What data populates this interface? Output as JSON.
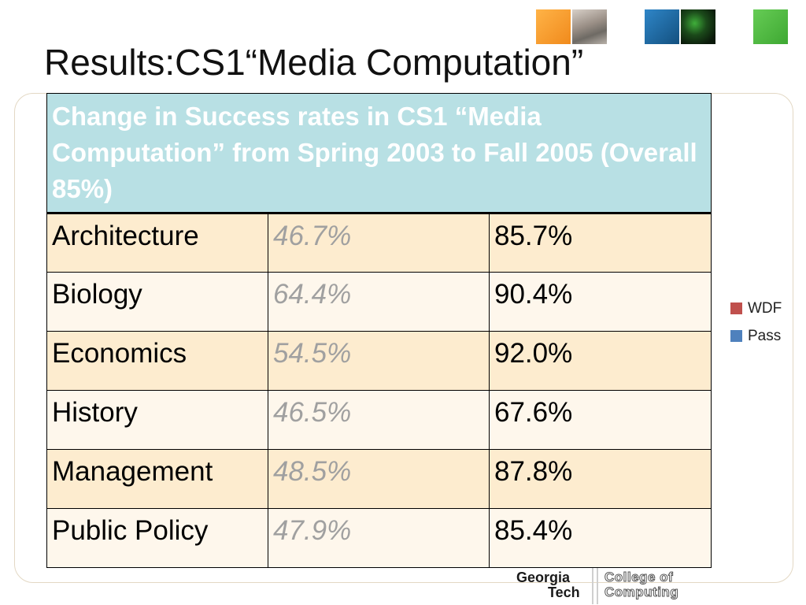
{
  "slide": {
    "title": "Results:CS1“Media Computation”"
  },
  "table": {
    "header": "Change in Success rates in CS1 “Media Computation” from Spring 2003 to Fall 2005 (Overall 85%)",
    "rows": [
      {
        "major": "Architecture",
        "wdf": "46.7%",
        "pass": "85.7%"
      },
      {
        "major": "Biology",
        "wdf": "64.4%",
        "pass": "90.4%"
      },
      {
        "major": "Economics",
        "wdf": "54.5%",
        "pass": "92.0%"
      },
      {
        "major": "History",
        "wdf": "46.5%",
        "pass": "67.6%"
      },
      {
        "major": "Management",
        "wdf": "48.5%",
        "pass": "87.8%"
      },
      {
        "major": "Public Policy",
        "wdf": "47.9%",
        "pass": "85.4%"
      }
    ]
  },
  "legend": {
    "items": [
      {
        "label": "WDF",
        "color": "#c0504d"
      },
      {
        "label": "Pass",
        "color": "#4f81bd"
      }
    ]
  },
  "logo": {
    "line1": "Georgia",
    "line2": "Tech",
    "line3": "College of",
    "line4": "Computing"
  },
  "colors": {
    "header_bg": "#b8e0e4",
    "row_odd": "#fdeccf",
    "row_even": "#fef7ec"
  }
}
